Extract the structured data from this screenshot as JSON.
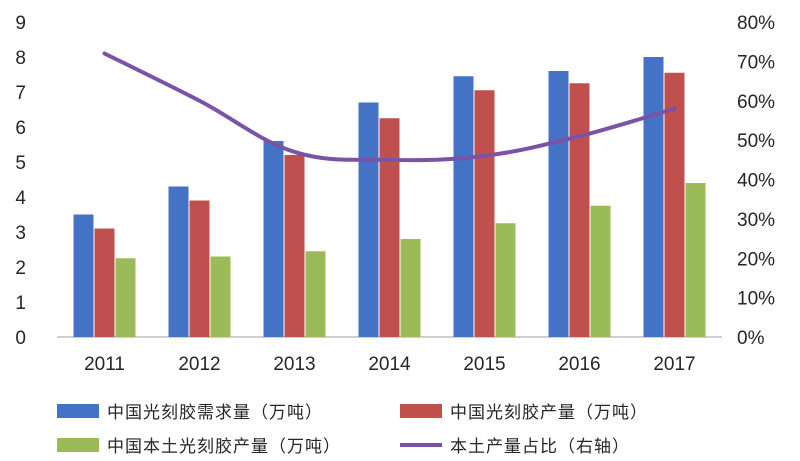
{
  "chart_data": {
    "type": "bar",
    "categories": [
      "2011",
      "2012",
      "2013",
      "2014",
      "2015",
      "2016",
      "2017"
    ],
    "series": [
      {
        "name": "中国光刻胶需求量（万吨）",
        "type": "bar",
        "axis": "left",
        "color": "#4472c4",
        "values": [
          3.5,
          4.3,
          5.6,
          6.7,
          7.45,
          7.6,
          8.0
        ]
      },
      {
        "name": "中国光刻胶产量（万吨）",
        "type": "bar",
        "axis": "left",
        "color": "#c0504d",
        "values": [
          3.1,
          3.9,
          5.2,
          6.25,
          7.05,
          7.25,
          7.55
        ]
      },
      {
        "name": "中国本土光刻胶产量（万吨）",
        "type": "bar",
        "axis": "left",
        "color": "#9bbb59",
        "values": [
          2.25,
          2.3,
          2.45,
          2.8,
          3.25,
          3.75,
          4.4
        ]
      },
      {
        "name": "本土产量占比（右轴）",
        "type": "line",
        "axis": "right",
        "color": "#7a52a6",
        "values": [
          0.72,
          0.6,
          0.47,
          0.45,
          0.46,
          0.51,
          0.58
        ]
      }
    ],
    "ylim": [
      0,
      9
    ],
    "yticks": [
      "0",
      "1",
      "2",
      "3",
      "4",
      "5",
      "6",
      "7",
      "8",
      "9"
    ],
    "y2lim": [
      0,
      0.8
    ],
    "y2ticks": [
      "0%",
      "10%",
      "20%",
      "30%",
      "40%",
      "50%",
      "60%",
      "70%",
      "80%"
    ],
    "grid": false,
    "legend_position": "bottom"
  }
}
